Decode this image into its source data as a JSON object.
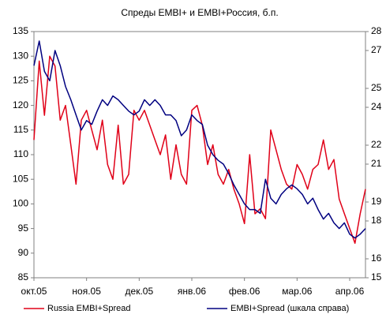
{
  "chart_data": {
    "type": "line",
    "title": "Спреды EMBI+ и EMBI+Россия, б.п.",
    "categories": [
      "окт.05",
      null,
      null,
      null,
      null,
      null,
      null,
      null,
      null,
      null,
      "ноя.05",
      null,
      null,
      null,
      null,
      null,
      null,
      null,
      null,
      null,
      "дек.05",
      null,
      null,
      null,
      null,
      null,
      null,
      null,
      null,
      null,
      "янв.06",
      null,
      null,
      null,
      null,
      null,
      null,
      null,
      null,
      null,
      "фев.06",
      null,
      null,
      null,
      null,
      null,
      null,
      null,
      null,
      null,
      "мар.06",
      null,
      null,
      null,
      null,
      null,
      null,
      null,
      null,
      null,
      "апр.06",
      null,
      null,
      null
    ],
    "series": [
      {
        "name": "Russia EMBI+Spread",
        "color": "#e00018",
        "values": [
          113,
          129,
          118,
          130,
          128,
          117,
          120,
          112,
          104,
          117,
          119,
          115,
          111,
          117,
          108,
          105,
          116,
          104,
          106,
          119,
          117,
          119,
          116,
          113,
          110,
          114,
          105,
          112,
          106,
          104,
          119,
          120,
          116,
          108,
          112,
          106,
          104,
          107,
          103,
          100,
          96,
          110,
          98,
          99,
          97,
          115,
          111,
          107,
          104,
          103,
          108,
          106,
          103,
          107,
          108,
          113,
          107,
          109,
          101,
          98,
          95,
          92,
          98,
          103
        ]
      },
      {
        "name": "EMBI+Spread (шкала справа)",
        "color": "#000080",
        "axis": "y2",
        "values": [
          26.2,
          27.5,
          25.9,
          25.4,
          27.0,
          26.2,
          25.1,
          24.4,
          23.6,
          22.8,
          23.3,
          23.1,
          23.8,
          24.4,
          24.1,
          24.6,
          24.4,
          24.1,
          23.8,
          23.6,
          23.8,
          24.4,
          24.1,
          24.4,
          24.1,
          23.6,
          23.6,
          23.3,
          22.5,
          22.8,
          23.6,
          23.3,
          23.1,
          22.0,
          21.5,
          21.2,
          21.0,
          20.5,
          19.9,
          19.4,
          18.9,
          18.6,
          18.6,
          18.4,
          20.2,
          19.2,
          18.9,
          19.4,
          19.7,
          19.9,
          19.7,
          19.4,
          18.9,
          19.2,
          18.6,
          18.1,
          18.4,
          17.9,
          17.6,
          17.9,
          17.3,
          17.1,
          17.3,
          17.6
        ]
      }
    ],
    "ylim": [
      85,
      135
    ],
    "yticks": [
      85,
      90,
      95,
      100,
      105,
      110,
      115,
      120,
      125,
      130,
      135
    ],
    "y2lim": [
      15,
      28
    ],
    "y2ticks": [
      15,
      16,
      18,
      19,
      21,
      22,
      24,
      25,
      27,
      28
    ],
    "grid": false,
    "legend": "bottom"
  }
}
